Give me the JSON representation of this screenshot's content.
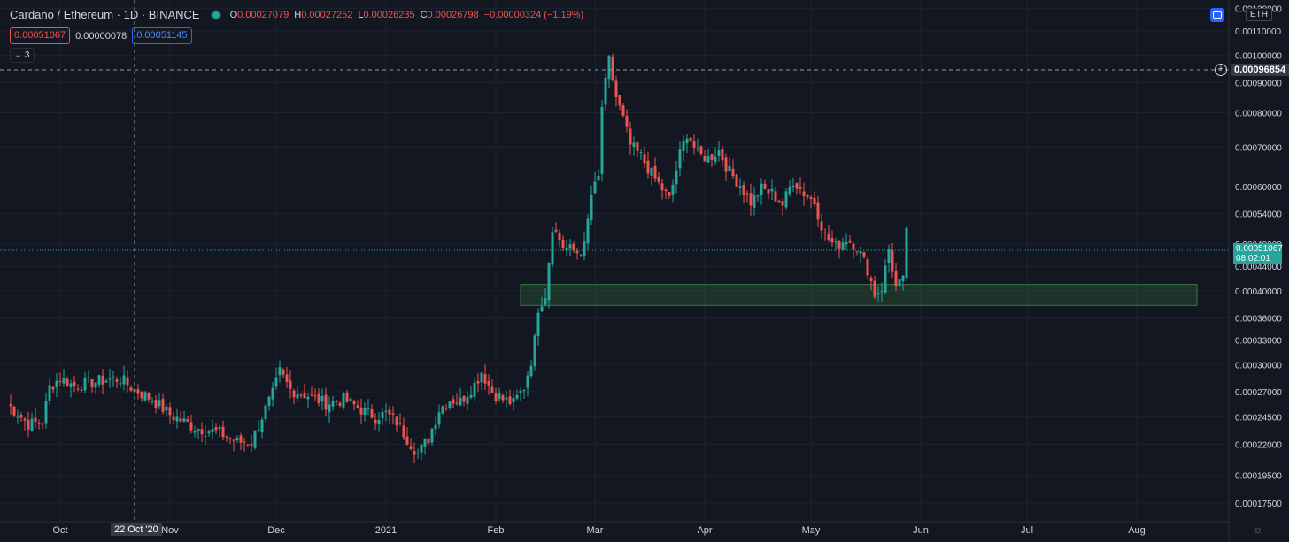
{
  "header": {
    "symbol_title": "Cardano / Ethereum · 1D · BINANCE",
    "ohlc": [
      {
        "k": "O",
        "v": "0.00027079"
      },
      {
        "k": "H",
        "v": "0.00027252"
      },
      {
        "k": "L",
        "v": "0.00026235"
      },
      {
        "k": "C",
        "v": "0.00026798"
      },
      {
        "k": "",
        "v": "−0.00000324 (−1.19%)"
      }
    ]
  },
  "trade": {
    "sell_price": "0.00051067",
    "spread": "0.00000078",
    "buy_price": "0.00051145"
  },
  "indicators_toggle": "3",
  "currency": "ETH",
  "crosshair_price": "0.00096854",
  "last_price": "0.00051067",
  "countdown": "08:02:01",
  "crosshair_date": "22 Oct '20",
  "colors": {
    "bg": "#131722",
    "up": "#26a69a",
    "down": "#ef5350",
    "grid": "#1e222d",
    "zone": "#1e3a2a"
  },
  "chart_data": {
    "type": "candlestick",
    "scale": "log",
    "y_ticks": [
      "0.00120000",
      "0.00110000",
      "0.00100000",
      "0.00090000",
      "0.00080000",
      "0.00070000",
      "0.00060000",
      "0.00054000",
      "0.00048000",
      "0.00044000",
      "0.00040000",
      "0.00036000",
      "0.00033000",
      "0.00030000",
      "0.00027000",
      "0.00024500",
      "0.00022000",
      "0.00019500",
      "0.00017500"
    ],
    "y_tick_values": [
      0.0012,
      0.0011,
      0.001,
      0.0009,
      0.0008,
      0.0007,
      0.0006,
      0.00054,
      0.00048,
      0.00044,
      0.0004,
      0.00036,
      0.00033,
      0.0003,
      0.00027,
      0.000245,
      0.00022,
      0.000195,
      0.000175
    ],
    "x_labels": [
      "Oct",
      "Nov",
      "Dec",
      "2021",
      "Feb",
      "Mar",
      "Apr",
      "May",
      "Jun",
      "Jul",
      "Aug"
    ],
    "x_label_dates": [
      "2020-10-01",
      "2020-11-01",
      "2020-12-01",
      "2021-01-01",
      "2021-02-01",
      "2021-03-01",
      "2021-04-01",
      "2021-05-01",
      "2021-06-01",
      "2021-07-01",
      "2021-08-01"
    ],
    "support_zone": {
      "from_date": "2021-02-08",
      "to_date": "2021-08-18",
      "low": 0.000378,
      "high": 0.00041
    },
    "anchors": [
      [
        "2020-09-16",
        0.000258
      ],
      [
        "2020-09-22",
        0.000238
      ],
      [
        "2020-09-26",
        0.00024
      ],
      [
        "2020-09-28",
        0.000275
      ],
      [
        "2020-10-01",
        0.000285
      ],
      [
        "2020-10-05",
        0.000276
      ],
      [
        "2020-10-10",
        0.00028
      ],
      [
        "2020-10-14",
        0.000283
      ],
      [
        "2020-10-18",
        0.000284
      ],
      [
        "2020-10-22",
        0.000272
      ],
      [
        "2020-10-27",
        0.000262
      ],
      [
        "2020-11-01",
        0.000247
      ],
      [
        "2020-11-08",
        0.000235
      ],
      [
        "2020-11-15",
        0.00023
      ],
      [
        "2020-11-20",
        0.000222
      ],
      [
        "2020-11-24",
        0.000222
      ],
      [
        "2020-11-27",
        0.000245
      ],
      [
        "2020-11-30",
        0.000268
      ],
      [
        "2020-12-02",
        0.000292
      ],
      [
        "2020-12-05",
        0.000272
      ],
      [
        "2020-12-10",
        0.000266
      ],
      [
        "2020-12-15",
        0.000258
      ],
      [
        "2020-12-20",
        0.000262
      ],
      [
        "2020-12-25",
        0.000252
      ],
      [
        "2020-12-29",
        0.000245
      ],
      [
        "2021-01-01",
        0.000248
      ],
      [
        "2021-01-04",
        0.00024
      ],
      [
        "2021-01-07",
        0.000225
      ],
      [
        "2021-01-10",
        0.000212
      ],
      [
        "2021-01-13",
        0.000225
      ],
      [
        "2021-01-16",
        0.000252
      ],
      [
        "2021-01-19",
        0.000262
      ],
      [
        "2021-01-22",
        0.00026
      ],
      [
        "2021-01-26",
        0.000278
      ],
      [
        "2021-01-28",
        0.000292
      ],
      [
        "2021-01-31",
        0.00027
      ],
      [
        "2021-02-03",
        0.000262
      ],
      [
        "2021-02-06",
        0.000258
      ],
      [
        "2021-02-09",
        0.000275
      ],
      [
        "2021-02-11",
        0.000305
      ],
      [
        "2021-02-12",
        0.00033
      ],
      [
        "2021-02-13",
        0.000375
      ],
      [
        "2021-02-15",
        0.000395
      ],
      [
        "2021-02-17",
        0.000515
      ],
      [
        "2021-02-20",
        0.000475
      ],
      [
        "2021-02-24",
        0.000465
      ],
      [
        "2021-02-26",
        0.000475
      ],
      [
        "2021-02-28",
        0.00058
      ],
      [
        "2021-03-02",
        0.00062
      ],
      [
        "2021-03-03",
        0.00082
      ],
      [
        "2021-03-05",
        0.00098
      ],
      [
        "2021-03-07",
        0.00085
      ],
      [
        "2021-03-09",
        0.00078
      ],
      [
        "2021-03-11",
        0.000705
      ],
      [
        "2021-03-14",
        0.000675
      ],
      [
        "2021-03-17",
        0.00063
      ],
      [
        "2021-03-20",
        0.000595
      ],
      [
        "2021-03-22",
        0.00057
      ],
      [
        "2021-03-25",
        0.00068
      ],
      [
        "2021-03-27",
        0.00074
      ],
      [
        "2021-03-30",
        0.00068
      ],
      [
        "2021-04-02",
        0.00067
      ],
      [
        "2021-04-05",
        0.00069
      ],
      [
        "2021-04-08",
        0.000635
      ],
      [
        "2021-04-11",
        0.000605
      ],
      [
        "2021-04-14",
        0.000565
      ],
      [
        "2021-04-17",
        0.000595
      ],
      [
        "2021-04-20",
        0.000585
      ],
      [
        "2021-04-23",
        0.00056
      ],
      [
        "2021-04-26",
        0.000615
      ],
      [
        "2021-04-29",
        0.000585
      ],
      [
        "2021-05-02",
        0.000565
      ],
      [
        "2021-05-05",
        0.000495
      ],
      [
        "2021-05-08",
        0.000475
      ],
      [
        "2021-05-11",
        0.00049
      ],
      [
        "2021-05-14",
        0.000475
      ],
      [
        "2021-05-17",
        0.000435
      ],
      [
        "2021-05-19",
        0.000395
      ],
      [
        "2021-05-21",
        0.000405
      ],
      [
        "2021-05-23",
        0.00047
      ],
      [
        "2021-05-25",
        0.000405
      ],
      [
        "2021-05-27",
        0.000415
      ],
      [
        "2021-05-28",
        0.000511
      ]
    ]
  }
}
